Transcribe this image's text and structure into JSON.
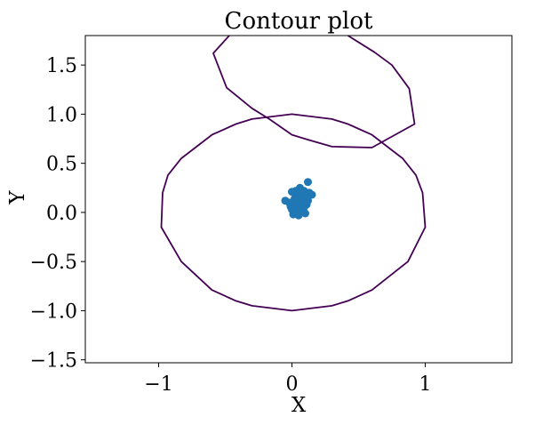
{
  "chart_data": {
    "type": "contour",
    "title": "Contour plot",
    "xlabel": "X",
    "ylabel": "Y",
    "xlim": [
      -1.55,
      1.65
    ],
    "ylim": [
      -1.53,
      1.8
    ],
    "x_ticks": [
      {
        "value": -1,
        "label": "−1"
      },
      {
        "value": 0,
        "label": "0"
      },
      {
        "value": 1,
        "label": "1"
      }
    ],
    "y_ticks": [
      {
        "value": -1.5,
        "label": "−1.5"
      },
      {
        "value": -1.0,
        "label": "−1.0"
      },
      {
        "value": -0.5,
        "label": "−0.5"
      },
      {
        "value": 0.0,
        "label": "0.0"
      },
      {
        "value": 0.5,
        "label": "0.5"
      },
      {
        "value": 1.0,
        "label": "1.0"
      },
      {
        "value": 1.5,
        "label": "1.5"
      }
    ],
    "grid": false,
    "contours": [
      {
        "color": "#440154",
        "closed": true,
        "points": [
          [
            0,
            1.0
          ],
          [
            0.3,
            0.95
          ],
          [
            0.42,
            0.9
          ],
          [
            0.6,
            0.79
          ],
          [
            0.83,
            0.55
          ],
          [
            0.93,
            0.38
          ],
          [
            0.98,
            0.2
          ],
          [
            1.0,
            -0.15
          ],
          [
            0.87,
            -0.5
          ],
          [
            0.6,
            -0.79
          ],
          [
            0.42,
            -0.9
          ],
          [
            0.3,
            -0.95
          ],
          [
            0,
            -1.0
          ],
          [
            -0.3,
            -0.95
          ],
          [
            -0.42,
            -0.9
          ],
          [
            -0.6,
            -0.79
          ],
          [
            -0.83,
            -0.5
          ],
          [
            -0.98,
            -0.15
          ],
          [
            -0.97,
            0.2
          ],
          [
            -0.93,
            0.38
          ],
          [
            -0.83,
            0.55
          ],
          [
            -0.6,
            0.79
          ],
          [
            -0.42,
            0.9
          ],
          [
            -0.3,
            0.95
          ]
        ]
      },
      {
        "color": "#440154",
        "closed": false,
        "points": [
          [
            -0.47,
            1.8
          ],
          [
            -0.59,
            1.62
          ],
          [
            -0.49,
            1.27
          ],
          [
            -0.3,
            1.06
          ],
          [
            -0.17,
            0.95
          ],
          [
            0,
            0.79
          ],
          [
            0.12,
            0.74
          ],
          [
            0.3,
            0.67
          ],
          [
            0.6,
            0.66
          ],
          [
            0.92,
            0.9
          ],
          [
            0.88,
            1.26
          ],
          [
            0.75,
            1.5
          ],
          [
            0.62,
            1.63
          ],
          [
            0.42,
            1.8
          ]
        ]
      }
    ],
    "scatter": {
      "color": "#1f77b4",
      "points": [
        [
          0.12,
          0.31
        ],
        [
          0.09,
          0.22
        ],
        [
          0.06,
          0.25
        ],
        [
          0.03,
          0.22
        ],
        [
          0.0,
          0.21
        ],
        [
          -0.05,
          0.12
        ],
        [
          -0.01,
          0.06
        ],
        [
          0.02,
          0.1
        ],
        [
          0.05,
          0.14
        ],
        [
          0.08,
          0.12
        ],
        [
          0.1,
          0.18
        ],
        [
          0.13,
          0.2
        ],
        [
          0.15,
          0.18
        ],
        [
          0.11,
          0.08
        ],
        [
          0.06,
          0.04
        ],
        [
          0.03,
          0.0
        ],
        [
          0.01,
          -0.02
        ],
        [
          0.05,
          -0.03
        ],
        [
          0.1,
          -0.01
        ],
        [
          0.0,
          0.03
        ],
        [
          0.07,
          0.06
        ],
        [
          0.04,
          0.17
        ],
        [
          0.02,
          0.14
        ],
        [
          0.08,
          0.02
        ],
        [
          0.12,
          0.12
        ],
        [
          -0.02,
          0.1
        ],
        [
          0.06,
          0.09
        ],
        [
          0.09,
          0.05
        ],
        [
          0.03,
          0.05
        ],
        [
          0.07,
          0.2
        ]
      ]
    }
  }
}
